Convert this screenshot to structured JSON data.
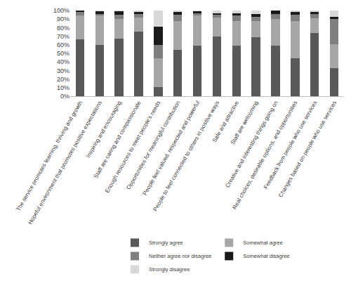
{
  "chart_data": {
    "type": "bar",
    "stacked": true,
    "grid": false,
    "legend": "bottom",
    "categories": [
      "The service promotes learning, thriving and growth",
      "Hopeful environment that promotes positive expectations",
      "Inspiring and encouraging",
      "Staff are caring and compassionate",
      "Enough resources to meet people's needs",
      "Opportunities for meaningful contribution",
      "People feel valued, respected and powerful",
      "People to feel connected to others in positive ways",
      "Safe and attractive",
      "Staff are welcoming",
      "Creative and interesting things going on",
      "Real choices, desirable options, and opportunities",
      "Feedback from people who use services",
      "Changes based on people who use services"
    ],
    "series": [
      {
        "name": "Strongly agree",
        "color": "#595959",
        "values": [
          66,
          60,
          67,
          75,
          11,
          54,
          59,
          70,
          59,
          69,
          59,
          44,
          74,
          33
        ]
      },
      {
        "name": "Somewhat agree",
        "color": "#a6a6a6",
        "values": [
          28,
          34,
          23,
          17,
          33,
          34,
          35,
          22,
          29,
          19,
          31,
          44,
          17,
          28
        ]
      },
      {
        "name": "Neither agree nor disagree",
        "color": "#7f7f7f",
        "values": [
          4,
          2,
          5,
          4,
          16,
          7,
          3,
          3,
          6,
          5,
          6,
          7,
          5,
          29
        ]
      },
      {
        "name": "Somewhat disagree",
        "color": "#1a1a1a",
        "values": [
          2,
          3,
          4,
          2,
          21,
          3,
          2,
          2,
          3,
          3,
          4,
          3,
          2,
          3
        ]
      },
      {
        "name": "Strongly disagree",
        "color": "#d9d9d9",
        "values": [
          0,
          1,
          1,
          2,
          19,
          2,
          1,
          3,
          3,
          4,
          0,
          2,
          2,
          7
        ]
      }
    ],
    "ylim": [
      0,
      100
    ],
    "yticks": [
      {
        "value": 0,
        "label": "0%"
      },
      {
        "value": 10,
        "label": "10%"
      },
      {
        "value": 20,
        "label": "20%"
      },
      {
        "value": 30,
        "label": "30%"
      },
      {
        "value": 40,
        "label": "40%"
      },
      {
        "value": 50,
        "label": "50%"
      },
      {
        "value": 60,
        "label": "60%"
      },
      {
        "value": 70,
        "label": "70%"
      },
      {
        "value": 80,
        "label": "80%"
      },
      {
        "value": 90,
        "label": "90%"
      },
      {
        "value": 100,
        "label": "100%"
      }
    ]
  }
}
